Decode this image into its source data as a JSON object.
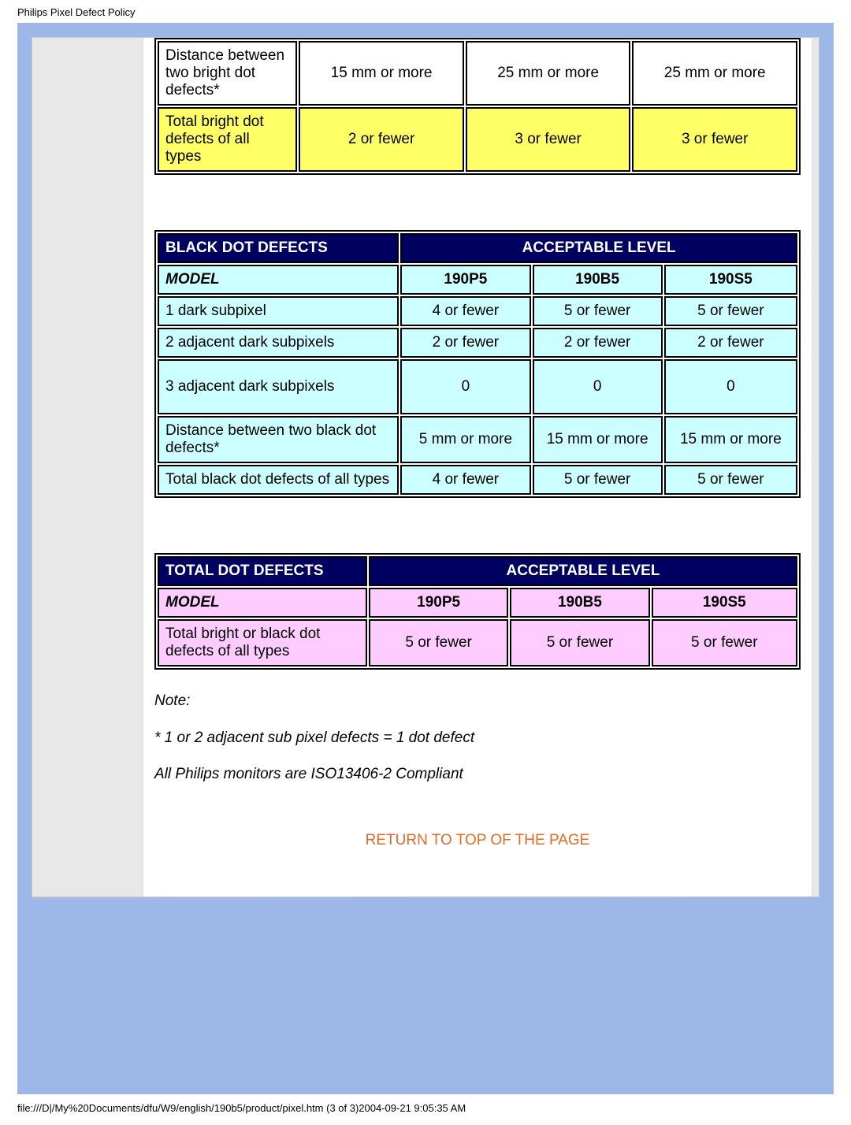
{
  "page_title": "Philips Pixel Defect Policy",
  "footer_path": "file:///D|/My%20Documents/dfu/W9/english/190b5/product/pixel.htm (3 of 3)2004-09-21 9:05:35 AM",
  "return_link": "RETURN TO TOP OF THE PAGE",
  "colors": {
    "page_bg": "#9db8e8",
    "paper_bg": "#e8e8e8",
    "content_bg": "#ffffff",
    "table_border": "#000000",
    "header_bg": "#000060",
    "header_fg": "#ffffff",
    "yellow": "#ffff66",
    "cyan": "#ccffff",
    "pink": "#ffccff",
    "link_color": "#e66a1f"
  },
  "bright_table": {
    "bg": "#ffff66",
    "col_widths": [
      "22%",
      "26%",
      "26%",
      "26%"
    ],
    "rows": [
      {
        "label": "Distance between two bright dot defects*",
        "vals": [
          "15 mm or more",
          "25 mm or more",
          "25 mm or more"
        ],
        "highlight": false
      },
      {
        "label": "Total bright dot defects of all types",
        "vals": [
          "2 or fewer",
          "3 or fewer",
          "3 or fewer"
        ],
        "highlight": true
      }
    ]
  },
  "black_table": {
    "bg": "#ccffff",
    "header_left": "BLACK DOT DEFECTS",
    "header_right": "ACCEPTABLE LEVEL",
    "model_label": "MODEL",
    "models": [
      "190P5",
      "190B5",
      "190S5"
    ],
    "col_widths": [
      "38%",
      "20.5%",
      "20.5%",
      "21%"
    ],
    "rows": [
      {
        "label": "1 dark subpixel",
        "vals": [
          "4 or fewer",
          "5 or fewer",
          "5 or fewer"
        ]
      },
      {
        "label": "2 adjacent dark subpixels",
        "vals": [
          "2 or fewer",
          "2 or fewer",
          "2 or fewer"
        ]
      },
      {
        "label": "3 adjacent dark subpixels",
        "vals": [
          "0",
          "0",
          "0"
        ],
        "tall": true
      },
      {
        "label": "Distance between two black dot defects*",
        "vals": [
          "5 mm or more",
          "15 mm or more",
          "15 mm or more"
        ]
      },
      {
        "label": "Total black dot defects of all types",
        "vals": [
          "4 or fewer",
          "5 or fewer",
          "5 or fewer"
        ]
      }
    ]
  },
  "total_table": {
    "bg": "#ffccff",
    "header_left": "TOTAL DOT DEFECTS",
    "header_right": "ACCEPTABLE LEVEL",
    "model_label": "MODEL",
    "models": [
      "190P5",
      "190B5",
      "190S5"
    ],
    "col_widths": [
      "33%",
      "22%",
      "22%",
      "23%"
    ],
    "rows": [
      {
        "label": "Total bright or black dot defects of all types",
        "vals": [
          "5 or fewer",
          "5 or fewer",
          "5 or fewer"
        ]
      }
    ]
  },
  "notes": {
    "heading": "Note:",
    "line1": "* 1 or 2 adjacent sub pixel defects = 1 dot defect",
    "line2": "All Philips monitors are ISO13406-2 Compliant"
  }
}
